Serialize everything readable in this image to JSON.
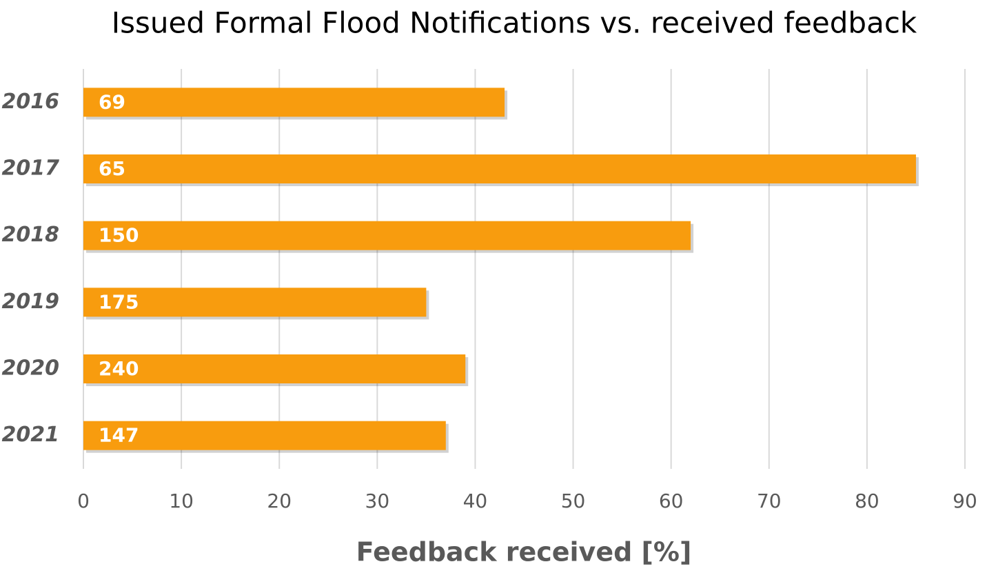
{
  "chart_data": {
    "type": "bar",
    "orientation": "horizontal",
    "title": "Issued Formal Flood Notifications vs. received feedback",
    "x_label": "Feedback received [%]",
    "categories": [
      "2016",
      "2017",
      "2018",
      "2019",
      "2020",
      "2021"
    ],
    "values": [
      43,
      85,
      62,
      35,
      39,
      37
    ],
    "notifications": [
      69,
      65,
      150,
      175,
      240,
      147
    ],
    "color": "#f89c0e",
    "xlim": [
      0,
      90
    ],
    "xticks": [
      0,
      10,
      20,
      30,
      40,
      50,
      60,
      70,
      80,
      90
    ],
    "grid": true
  }
}
